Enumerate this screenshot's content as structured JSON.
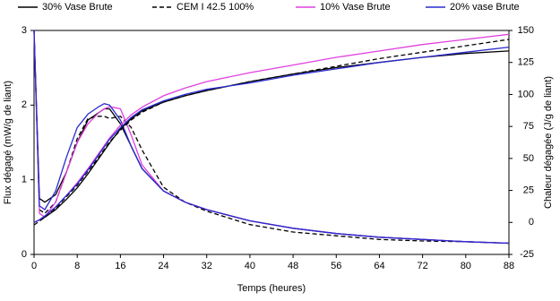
{
  "chart_data": {
    "type": "line",
    "xlabel": "Temps (heures)",
    "ylabel": "Flux dégagé (mW/g de liant)",
    "y2label": "Chaleur dégagée (J/g de liant)",
    "x": [
      0,
      1,
      2,
      4,
      6,
      8,
      10,
      12,
      13,
      14,
      16,
      18,
      20,
      24,
      28,
      32,
      40,
      48,
      56,
      64,
      72,
      80,
      88
    ],
    "xlim": [
      0,
      88
    ],
    "xticks": [
      0,
      8,
      16,
      24,
      32,
      40,
      48,
      56,
      64,
      72,
      80,
      88
    ],
    "ylim": [
      0,
      3
    ],
    "yticks": [
      0,
      1,
      2,
      3
    ],
    "y2lim": [
      -25,
      150
    ],
    "y2ticks": [
      -25,
      0,
      25,
      50,
      75,
      100,
      125,
      150
    ],
    "series": [
      {
        "name": "30% Vase Brute",
        "color": "#000000",
        "dashed": false,
        "values": [
          3,
          0.75,
          0.7,
          0.8,
          1.1,
          1.5,
          1.8,
          1.9,
          1.95,
          1.95,
          1.75,
          1.45,
          1.15,
          0.85,
          0.7,
          0.6,
          0.45,
          0.35,
          0.28,
          0.23,
          0.2,
          0.17,
          0.15
        ]
      },
      {
        "name": "CEM I 42.5 100%",
        "color": "#000000",
        "dashed": true,
        "values": [
          3,
          0.6,
          0.55,
          0.7,
          1.1,
          1.55,
          1.82,
          1.85,
          1.85,
          1.82,
          1.85,
          1.7,
          1.4,
          0.9,
          0.7,
          0.58,
          0.4,
          0.3,
          0.25,
          0.2,
          0.18,
          0.17,
          0.15
        ]
      },
      {
        "name": "10% Vase Brute",
        "color": "#e040e0",
        "dashed": false,
        "values": [
          3,
          0.55,
          0.5,
          0.7,
          1.1,
          1.5,
          1.75,
          1.9,
          1.95,
          1.98,
          1.95,
          1.6,
          1.2,
          0.85,
          0.7,
          0.6,
          0.45,
          0.35,
          0.28,
          0.23,
          0.2,
          0.17,
          0.15
        ]
      },
      {
        "name": "20% vase Brute",
        "color": "#2a2ad0",
        "dashed": false,
        "values": [
          3,
          0.65,
          0.6,
          0.85,
          1.3,
          1.7,
          1.88,
          1.98,
          2.02,
          2.0,
          1.8,
          1.45,
          1.15,
          0.85,
          0.7,
          0.6,
          0.45,
          0.35,
          0.28,
          0.23,
          0.2,
          0.17,
          0.15
        ]
      },
      {
        "axis": "y2",
        "color": "#000000",
        "dashed": false,
        "values": [
          0,
          2,
          4,
          10,
          18,
          27,
          38,
          50,
          56,
          62,
          73,
          81,
          87,
          94,
          99,
          103,
          110,
          116,
          121,
          125,
          129,
          132,
          134
        ]
      },
      {
        "axis": "y2",
        "color": "#000000",
        "dashed": true,
        "values": [
          -2,
          1,
          4,
          11,
          20,
          29,
          40,
          51,
          57,
          63,
          72,
          80,
          86,
          94,
          99,
          103,
          110,
          116,
          122,
          128,
          133,
          138,
          143
        ]
      },
      {
        "axis": "y2",
        "color": "#e040e0",
        "dashed": false,
        "values": [
          0,
          2,
          5,
          12,
          21,
          31,
          42,
          54,
          60,
          66,
          76,
          84,
          90,
          99,
          105,
          110,
          117,
          123,
          129,
          134,
          139,
          143,
          147
        ]
      },
      {
        "axis": "y2",
        "color": "#2a2ad0",
        "dashed": false,
        "values": [
          0,
          2,
          5,
          12,
          21,
          30,
          41,
          53,
          59,
          65,
          74,
          82,
          88,
          95,
          100,
          104,
          109,
          115,
          120,
          125,
          129,
          133,
          137
        ]
      }
    ]
  }
}
